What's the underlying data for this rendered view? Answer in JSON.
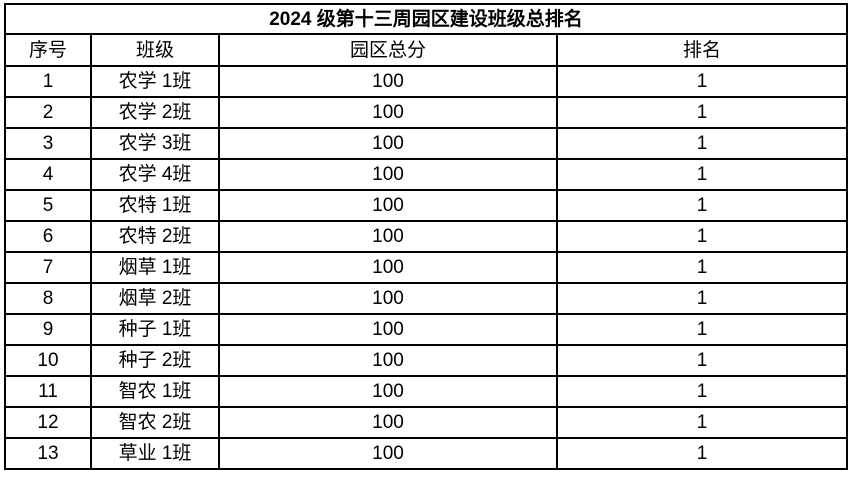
{
  "table": {
    "title": "2024 级第十三周园区建设班级总排名",
    "headers": {
      "no": "序号",
      "class": "班级",
      "score": "园区总分",
      "rank": "排名"
    },
    "rows": [
      {
        "no": "1",
        "class": "农学 1班",
        "score": "100",
        "rank": "1"
      },
      {
        "no": "2",
        "class": "农学 2班",
        "score": "100",
        "rank": "1"
      },
      {
        "no": "3",
        "class": "农学 3班",
        "score": "100",
        "rank": "1"
      },
      {
        "no": "4",
        "class": "农学 4班",
        "score": "100",
        "rank": "1"
      },
      {
        "no": "5",
        "class": "农特 1班",
        "score": "100",
        "rank": "1"
      },
      {
        "no": "6",
        "class": "农特 2班",
        "score": "100",
        "rank": "1"
      },
      {
        "no": "7",
        "class": "烟草 1班",
        "score": "100",
        "rank": "1"
      },
      {
        "no": "8",
        "class": "烟草 2班",
        "score": "100",
        "rank": "1"
      },
      {
        "no": "9",
        "class": "种子 1班",
        "score": "100",
        "rank": "1"
      },
      {
        "no": "10",
        "class": "种子 2班",
        "score": "100",
        "rank": "1"
      },
      {
        "no": "11",
        "class": "智农 1班",
        "score": "100",
        "rank": "1"
      },
      {
        "no": "12",
        "class": "智农 2班",
        "score": "100",
        "rank": "1"
      },
      {
        "no": "13",
        "class": "草业 1班",
        "score": "100",
        "rank": "1"
      }
    ],
    "colors": {
      "border": "#000000",
      "text": "#000000",
      "background": "#ffffff"
    }
  }
}
